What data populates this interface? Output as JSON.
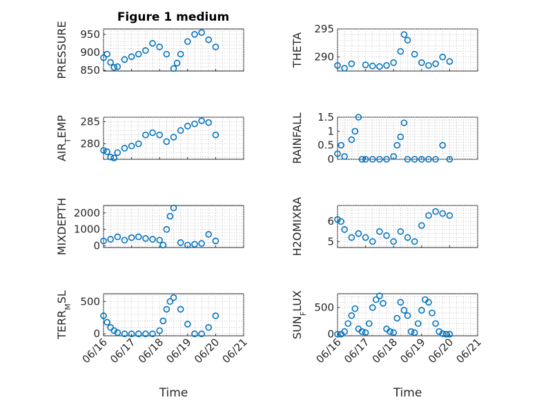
{
  "figure": {
    "title": "Figure 1 medium"
  },
  "chart_data": [
    {
      "type": "scatter",
      "id": "pressure",
      "ylabel": "PRESSURE",
      "title": "Figure 1 medium",
      "ylim": [
        848,
        965
      ],
      "yticks": [
        850,
        900,
        950
      ],
      "grid": true,
      "x": [
        "06/16 00:00",
        "06/16 03:00",
        "06/16 06:00",
        "06/16 09:00",
        "06/16 12:00",
        "06/16 18:00",
        "06/17 00:00",
        "06/17 06:00",
        "06/17 12:00",
        "06/17 18:00",
        "06/18 00:00",
        "06/18 06:00",
        "06/18 12:00",
        "06/18 15:00",
        "06/18 18:00",
        "06/19 00:00",
        "06/19 06:00",
        "06/19 12:00",
        "06/19 18:00",
        "06/20 00:00"
      ],
      "values": [
        885,
        895,
        872,
        858,
        860,
        880,
        888,
        895,
        905,
        925,
        915,
        895,
        855,
        870,
        895,
        930,
        950,
        955,
        935,
        915
      ]
    },
    {
      "type": "scatter",
      "id": "theta",
      "ylabel": "THETA",
      "ylim": [
        287.5,
        295
      ],
      "yticks": [
        290,
        295
      ],
      "grid": true,
      "x": [
        "06/16 00:00",
        "06/16 06:00",
        "06/16 12:00",
        "06/17 00:00",
        "06/17 06:00",
        "06/17 12:00",
        "06/17 18:00",
        "06/18 00:00",
        "06/18 06:00",
        "06/18 09:00",
        "06/18 12:00",
        "06/18 18:00",
        "06/19 00:00",
        "06/19 06:00",
        "06/19 12:00",
        "06/19 18:00",
        "06/20 00:00"
      ],
      "values": [
        288.5,
        288.0,
        288.8,
        288.6,
        288.4,
        288.3,
        288.5,
        289.0,
        291.0,
        294.0,
        293.0,
        290.5,
        289.0,
        288.5,
        288.8,
        290.0,
        289.2
      ]
    },
    {
      "type": "scatter",
      "id": "airtemp",
      "ylabel": "AIR_TEMP",
      "ylim": [
        276.5,
        286
      ],
      "yticks": [
        280,
        285
      ],
      "grid": true,
      "x": [
        "06/16 00:00",
        "06/16 03:00",
        "06/16 06:00",
        "06/16 09:00",
        "06/16 12:00",
        "06/16 18:00",
        "06/17 00:00",
        "06/17 06:00",
        "06/17 12:00",
        "06/17 18:00",
        "06/18 00:00",
        "06/18 06:00",
        "06/18 12:00",
        "06/18 18:00",
        "06/19 00:00",
        "06/19 06:00",
        "06/19 12:00",
        "06/19 18:00",
        "06/20 00:00"
      ],
      "values": [
        278.5,
        278.2,
        277.0,
        276.8,
        278.0,
        279.0,
        279.5,
        280.0,
        282.0,
        282.5,
        282.0,
        280.5,
        281.5,
        283.0,
        284.0,
        284.5,
        285.2,
        284.8,
        282.0
      ]
    },
    {
      "type": "scatter",
      "id": "rainfall",
      "ylabel": "RAINFALL",
      "ylim": [
        0,
        1.5
      ],
      "yticks": [
        0,
        0.5,
        1,
        1.5
      ],
      "grid": true,
      "x": [
        "06/16 00:00",
        "06/16 03:00",
        "06/16 06:00",
        "06/16 12:00",
        "06/16 15:00",
        "06/16 18:00",
        "06/16 21:00",
        "06/17 00:00",
        "06/17 06:00",
        "06/17 12:00",
        "06/17 18:00",
        "06/18 00:00",
        "06/18 03:00",
        "06/18 06:00",
        "06/18 09:00",
        "06/18 12:00",
        "06/18 18:00",
        "06/19 00:00",
        "06/19 06:00",
        "06/19 12:00",
        "06/19 18:00",
        "06/20 00:00"
      ],
      "values": [
        0.2,
        0.5,
        0.1,
        0.7,
        1.0,
        1.5,
        0.0,
        0.0,
        0.0,
        0.0,
        0.0,
        0.1,
        0.5,
        0.8,
        1.3,
        0.0,
        0.0,
        0.0,
        0.0,
        0.0,
        0.5,
        0.0
      ]
    },
    {
      "type": "scatter",
      "id": "mixdepth",
      "ylabel": "MIXDEPTH",
      "ylim": [
        -100,
        2450
      ],
      "yticks": [
        0,
        1000,
        2000
      ],
      "grid": true,
      "x": [
        "06/16 00:00",
        "06/16 06:00",
        "06/16 12:00",
        "06/16 18:00",
        "06/17 00:00",
        "06/17 06:00",
        "06/17 12:00",
        "06/17 18:00",
        "06/18 00:00",
        "06/18 03:00",
        "06/18 06:00",
        "06/18 09:00",
        "06/18 12:00",
        "06/18 18:00",
        "06/19 00:00",
        "06/19 06:00",
        "06/19 12:00",
        "06/19 18:00",
        "06/20 00:00"
      ],
      "values": [
        300,
        400,
        550,
        350,
        500,
        550,
        450,
        400,
        350,
        50,
        1000,
        1800,
        2300,
        200,
        50,
        100,
        150,
        700,
        300
      ]
    },
    {
      "type": "scatter",
      "id": "h2omixra",
      "ylabel": "H2OMIXRA",
      "ylim": [
        4.7,
        6.8
      ],
      "yticks": [
        5,
        6
      ],
      "grid": true,
      "x": [
        "06/16 00:00",
        "06/16 03:00",
        "06/16 06:00",
        "06/16 12:00",
        "06/16 18:00",
        "06/17 00:00",
        "06/17 06:00",
        "06/17 12:00",
        "06/17 18:00",
        "06/18 00:00",
        "06/18 06:00",
        "06/18 12:00",
        "06/18 18:00",
        "06/19 00:00",
        "06/19 06:00",
        "06/19 12:00",
        "06/19 18:00",
        "06/20 00:00"
      ],
      "values": [
        6.1,
        6.0,
        5.6,
        5.2,
        5.4,
        5.2,
        5.0,
        5.5,
        5.3,
        5.0,
        5.5,
        5.2,
        5.0,
        5.8,
        6.3,
        6.5,
        6.4,
        6.3
      ]
    },
    {
      "type": "scatter",
      "id": "terrmsl",
      "ylabel": "TERR_MSL",
      "ylim": [
        -30,
        620
      ],
      "yticks": [
        0,
        500
      ],
      "grid": true,
      "x": [
        "06/16 00:00",
        "06/16 03:00",
        "06/16 06:00",
        "06/16 09:00",
        "06/16 12:00",
        "06/16 18:00",
        "06/17 00:00",
        "06/17 06:00",
        "06/17 12:00",
        "06/17 18:00",
        "06/18 00:00",
        "06/18 03:00",
        "06/18 06:00",
        "06/18 09:00",
        "06/18 12:00",
        "06/18 18:00",
        "06/19 00:00",
        "06/19 06:00",
        "06/19 12:00",
        "06/19 18:00",
        "06/20 00:00"
      ],
      "values": [
        280,
        180,
        100,
        50,
        20,
        0,
        0,
        0,
        0,
        0,
        50,
        200,
        380,
        500,
        560,
        380,
        150,
        0,
        0,
        100,
        280
      ]
    },
    {
      "type": "scatter",
      "id": "sunflux",
      "ylabel": "SUN_FLUX",
      "ylim": [
        -30,
        760
      ],
      "yticks": [
        0,
        500
      ],
      "grid": true,
      "x": [
        "06/16 00:00",
        "06/16 03:00",
        "06/16 06:00",
        "06/16 09:00",
        "06/16 12:00",
        "06/16 15:00",
        "06/16 18:00",
        "06/16 21:00",
        "06/17 00:00",
        "06/17 03:00",
        "06/17 06:00",
        "06/17 09:00",
        "06/17 12:00",
        "06/17 15:00",
        "06/17 18:00",
        "06/17 21:00",
        "06/18 00:00",
        "06/18 03:00",
        "06/18 06:00",
        "06/18 09:00",
        "06/18 12:00",
        "06/18 15:00",
        "06/18 18:00",
        "06/18 21:00",
        "06/19 00:00",
        "06/19 03:00",
        "06/19 06:00",
        "06/19 09:00",
        "06/19 12:00",
        "06/19 15:00",
        "06/19 18:00",
        "06/19 21:00",
        "06/20 00:00"
      ],
      "values": [
        0,
        0,
        50,
        200,
        350,
        480,
        100,
        50,
        30,
        200,
        500,
        650,
        720,
        580,
        100,
        50,
        30,
        300,
        600,
        450,
        350,
        50,
        30,
        200,
        450,
        650,
        600,
        400,
        200,
        50,
        10,
        0,
        0
      ]
    }
  ],
  "xaxis": {
    "xlabel": "Time",
    "xlim": [
      "06/16 00:00",
      "06/21 00:00"
    ],
    "ticks": [
      "06/16",
      "06/17",
      "06/18",
      "06/19",
      "06/20",
      "06/21"
    ]
  }
}
